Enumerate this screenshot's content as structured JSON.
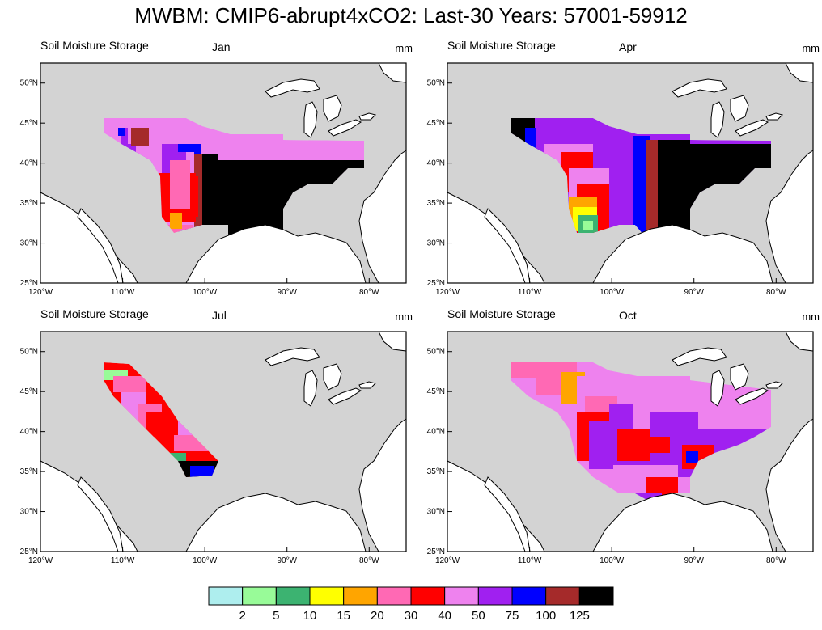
{
  "title": "MWBM: CMIP6-abrupt4xCO2: Last-30 Years: 57001-59912",
  "panels": [
    {
      "left_label": "Soil Moisture Storage",
      "center_label": "Jan",
      "units": "mm"
    },
    {
      "left_label": "Soil Moisture Storage",
      "center_label": "Apr",
      "units": "mm"
    },
    {
      "left_label": "Soil Moisture Storage",
      "center_label": "Jul",
      "units": "mm"
    },
    {
      "left_label": "Soil Moisture Storage",
      "center_label": "Oct",
      "units": "mm"
    }
  ],
  "axes": {
    "lat_ticks": [
      "50°N",
      "45°N",
      "40°N",
      "35°N",
      "30°N",
      "25°N"
    ],
    "lon_ticks": [
      "120°W",
      "110°W",
      "100°W",
      "90°W",
      "80°W"
    ],
    "lat_range": [
      25,
      52.5
    ],
    "lon_range": [
      -120,
      -75.5
    ]
  },
  "legend": {
    "colors": [
      "#aeeeee",
      "#98fb98",
      "#3cb371",
      "#ffff00",
      "#ffa500",
      "#ff69b4",
      "#ff0000",
      "#ee82ee",
      "#a020f0",
      "#0000ff",
      "#a52a2a",
      "#000000"
    ],
    "labels": [
      "2",
      "5",
      "10",
      "15",
      "20",
      "30",
      "40",
      "50",
      "75",
      "100",
      "125"
    ]
  },
  "colors": {
    "land": "#d3d3d3",
    "water": "#ffffff",
    "border": "#000000"
  }
}
